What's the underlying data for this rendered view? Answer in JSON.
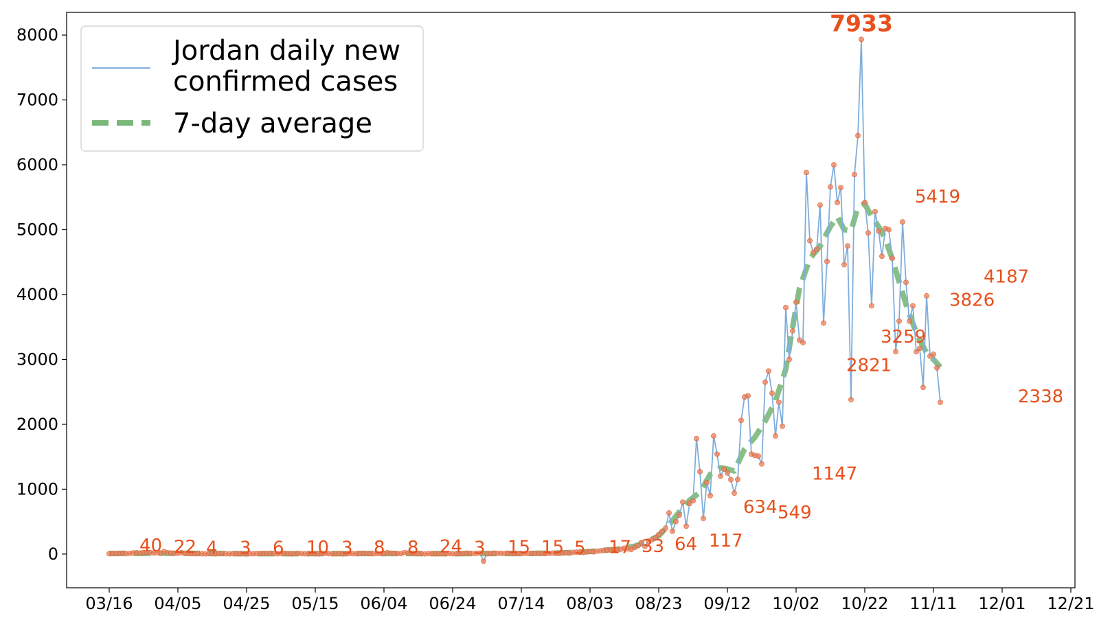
{
  "chart_data": {
    "type": "line",
    "title": "",
    "xlabel": "",
    "ylabel": "",
    "start_date": "2020-03-16",
    "x_ticks": [
      "03/16",
      "04/05",
      "04/25",
      "05/15",
      "06/04",
      "06/24",
      "07/14",
      "08/03",
      "08/23",
      "09/12",
      "10/02",
      "10/22",
      "11/11",
      "12/01",
      "12/21"
    ],
    "y_ticks": [
      "0",
      "1000",
      "2000",
      "3000",
      "4000",
      "5000",
      "6000",
      "7000",
      "8000"
    ],
    "ylim": [
      -520,
      8350
    ],
    "grid": false,
    "legend_position": "top-left",
    "series": [
      {
        "name": "Jordan daily new confirmed cases",
        "color": "#7faedb",
        "anchors": [
          [
            0,
            5
          ],
          [
            1,
            10
          ],
          [
            2,
            8
          ],
          [
            3,
            12
          ],
          [
            4,
            14
          ],
          [
            5,
            5
          ],
          [
            6,
            10
          ],
          [
            7,
            18
          ],
          [
            8,
            20
          ],
          [
            9,
            15
          ],
          [
            10,
            25
          ],
          [
            11,
            30
          ],
          [
            12,
            22
          ],
          [
            13,
            18
          ],
          [
            14,
            20
          ],
          [
            15,
            15
          ],
          [
            16,
            40
          ],
          [
            17,
            20
          ],
          [
            18,
            15
          ],
          [
            19,
            10
          ],
          [
            20,
            12
          ],
          [
            21,
            22
          ],
          [
            22,
            10
          ],
          [
            23,
            8
          ],
          [
            24,
            6
          ],
          [
            25,
            4
          ],
          [
            26,
            5
          ],
          [
            27,
            4
          ],
          [
            28,
            3
          ],
          [
            29,
            5
          ],
          [
            30,
            4
          ],
          [
            31,
            3
          ],
          [
            32,
            6
          ],
          [
            33,
            8
          ],
          [
            34,
            4
          ],
          [
            35,
            3
          ],
          [
            36,
            5
          ],
          [
            37,
            4
          ],
          [
            38,
            3
          ],
          [
            39,
            6
          ],
          [
            40,
            3
          ],
          [
            41,
            5
          ],
          [
            42,
            4
          ],
          [
            43,
            8
          ],
          [
            44,
            6
          ],
          [
            45,
            10
          ],
          [
            46,
            8
          ],
          [
            47,
            12
          ],
          [
            48,
            6
          ],
          [
            49,
            4
          ],
          [
            50,
            8
          ],
          [
            51,
            10
          ],
          [
            52,
            5
          ],
          [
            53,
            3
          ],
          [
            54,
            8
          ],
          [
            55,
            10
          ],
          [
            56,
            6
          ],
          [
            57,
            4
          ],
          [
            58,
            3
          ],
          [
            59,
            6
          ],
          [
            60,
            4
          ],
          [
            61,
            3
          ],
          [
            62,
            8
          ],
          [
            63,
            10
          ],
          [
            64,
            5
          ],
          [
            65,
            3
          ],
          [
            66,
            4
          ],
          [
            67,
            6
          ],
          [
            68,
            3
          ],
          [
            69,
            5
          ],
          [
            70,
            8
          ],
          [
            71,
            6
          ],
          [
            72,
            4
          ],
          [
            73,
            10
          ],
          [
            74,
            12
          ],
          [
            75,
            8
          ],
          [
            76,
            6
          ],
          [
            77,
            4
          ],
          [
            78,
            8
          ],
          [
            79,
            6
          ],
          [
            80,
            5
          ],
          [
            81,
            20
          ],
          [
            82,
            15
          ],
          [
            83,
            10
          ],
          [
            84,
            8
          ],
          [
            85,
            6
          ],
          [
            86,
            24
          ],
          [
            87,
            15
          ],
          [
            88,
            10
          ],
          [
            89,
            8
          ],
          [
            90,
            5
          ],
          [
            91,
            4
          ],
          [
            92,
            3
          ],
          [
            93,
            6
          ],
          [
            94,
            4
          ],
          [
            95,
            3
          ],
          [
            96,
            5
          ],
          [
            97,
            4
          ],
          [
            98,
            3
          ],
          [
            99,
            6
          ],
          [
            100,
            4
          ],
          [
            101,
            3
          ],
          [
            102,
            5
          ],
          [
            103,
            8
          ],
          [
            104,
            15
          ],
          [
            105,
            10
          ],
          [
            106,
            8
          ],
          [
            107,
            12
          ],
          [
            108,
            15
          ],
          [
            109,
            -110
          ],
          [
            110,
            5
          ],
          [
            111,
            8
          ],
          [
            112,
            15
          ],
          [
            113,
            10
          ],
          [
            114,
            12
          ],
          [
            115,
            8
          ],
          [
            116,
            15
          ],
          [
            117,
            10
          ],
          [
            118,
            6
          ],
          [
            119,
            8
          ],
          [
            120,
            5
          ],
          [
            121,
            10
          ],
          [
            122,
            8
          ],
          [
            123,
            6
          ],
          [
            124,
            10
          ],
          [
            125,
            12
          ],
          [
            126,
            8
          ],
          [
            127,
            6
          ],
          [
            128,
            10
          ],
          [
            129,
            15
          ],
          [
            130,
            12
          ],
          [
            131,
            10
          ],
          [
            132,
            17
          ],
          [
            133,
            20
          ],
          [
            134,
            15
          ],
          [
            135,
            25
          ],
          [
            136,
            30
          ],
          [
            137,
            28
          ],
          [
            138,
            25
          ],
          [
            139,
            33
          ],
          [
            140,
            40
          ],
          [
            141,
            35
          ],
          [
            142,
            45
          ],
          [
            143,
            50
          ],
          [
            144,
            55
          ],
          [
            145,
            60
          ],
          [
            146,
            64
          ],
          [
            147,
            70
          ],
          [
            148,
            60
          ],
          [
            149,
            75
          ],
          [
            150,
            90
          ],
          [
            151,
            80
          ],
          [
            152,
            70
          ],
          [
            153,
            100
          ],
          [
            154,
            130
          ],
          [
            155,
            180
          ],
          [
            156,
            117
          ],
          [
            157,
            200
          ],
          [
            158,
            220
          ],
          [
            159,
            250
          ],
          [
            160,
            300
          ],
          [
            161,
            350
          ],
          [
            162,
            400
          ],
          [
            163,
            634
          ],
          [
            164,
            350
          ],
          [
            165,
            500
          ],
          [
            166,
            600
          ],
          [
            167,
            800
          ],
          [
            168,
            430
          ],
          [
            169,
            780
          ],
          [
            170,
            820
          ],
          [
            171,
            1780
          ],
          [
            172,
            1270
          ],
          [
            173,
            549
          ],
          [
            174,
            1100
          ],
          [
            175,
            900
          ],
          [
            176,
            1820
          ],
          [
            177,
            1540
          ],
          [
            178,
            1200
          ],
          [
            179,
            1310
          ],
          [
            180,
            1250
          ],
          [
            181,
            1147
          ],
          [
            182,
            940
          ],
          [
            183,
            1150
          ],
          [
            184,
            2060
          ],
          [
            185,
            2420
          ],
          [
            186,
            2440
          ],
          [
            187,
            1540
          ],
          [
            188,
            1520
          ],
          [
            189,
            1510
          ],
          [
            190,
            1390
          ],
          [
            191,
            2650
          ],
          [
            192,
            2821
          ],
          [
            193,
            2480
          ],
          [
            194,
            1820
          ],
          [
            195,
            2340
          ],
          [
            196,
            1970
          ],
          [
            197,
            3800
          ],
          [
            198,
            3000
          ],
          [
            199,
            3440
          ],
          [
            200,
            3880
          ],
          [
            201,
            3300
          ],
          [
            202,
            3259
          ],
          [
            203,
            5880
          ],
          [
            204,
            4830
          ],
          [
            205,
            4650
          ],
          [
            206,
            4700
          ],
          [
            207,
            5380
          ],
          [
            208,
            3560
          ],
          [
            209,
            4510
          ],
          [
            210,
            5660
          ],
          [
            211,
            6000
          ],
          [
            212,
            5419
          ],
          [
            213,
            5650
          ],
          [
            214,
            4460
          ],
          [
            215,
            4750
          ],
          [
            216,
            2380
          ],
          [
            217,
            5850
          ],
          [
            218,
            6450
          ],
          [
            219,
            7933
          ],
          [
            220,
            5419
          ],
          [
            221,
            4950
          ],
          [
            222,
            3826
          ],
          [
            223,
            5280
          ],
          [
            224,
            4980
          ],
          [
            225,
            4590
          ],
          [
            226,
            5020
          ],
          [
            227,
            5000
          ],
          [
            228,
            4560
          ],
          [
            229,
            3120
          ],
          [
            230,
            3590
          ],
          [
            231,
            5120
          ],
          [
            232,
            4187
          ],
          [
            233,
            3590
          ],
          [
            234,
            3826
          ],
          [
            235,
            3120
          ],
          [
            236,
            3170
          ],
          [
            237,
            2570
          ],
          [
            238,
            3980
          ],
          [
            239,
            3050
          ],
          [
            240,
            3080
          ],
          [
            241,
            2870
          ],
          [
            242,
            2338
          ]
        ]
      },
      {
        "name": "7-day average",
        "color": "#7ab87a",
        "anchors": [
          [
            0,
            8
          ],
          [
            20,
            12
          ],
          [
            40,
            5
          ],
          [
            60,
            6
          ],
          [
            80,
            8
          ],
          [
            100,
            6
          ],
          [
            120,
            8
          ],
          [
            130,
            15
          ],
          [
            140,
            40
          ],
          [
            148,
            75
          ],
          [
            153,
            120
          ],
          [
            157,
            200
          ],
          [
            160,
            280
          ],
          [
            163,
            450
          ],
          [
            166,
            650
          ],
          [
            169,
            830
          ],
          [
            172,
            950
          ],
          [
            175,
            1230
          ],
          [
            178,
            1330
          ],
          [
            180,
            1310
          ],
          [
            182,
            1280
          ],
          [
            185,
            1620
          ],
          [
            188,
            1800
          ],
          [
            191,
            2050
          ],
          [
            194,
            2360
          ],
          [
            197,
            2850
          ],
          [
            199,
            3500
          ],
          [
            201,
            4100
          ],
          [
            204,
            4550
          ],
          [
            207,
            4750
          ],
          [
            210,
            5050
          ],
          [
            212,
            5200
          ],
          [
            214,
            5000
          ],
          [
            216,
            4980
          ],
          [
            218,
            5350
          ],
          [
            220,
            5400
          ],
          [
            222,
            5200
          ],
          [
            224,
            5050
          ],
          [
            226,
            4850
          ],
          [
            228,
            4550
          ],
          [
            230,
            4200
          ],
          [
            232,
            3850
          ],
          [
            234,
            3550
          ],
          [
            236,
            3300
          ],
          [
            238,
            3100
          ],
          [
            240,
            3000
          ],
          [
            242,
            2880
          ]
        ]
      }
    ],
    "data_labels": [
      {
        "x": 16,
        "text": "40",
        "y": 40
      },
      {
        "x": 27,
        "text": "22",
        "y": 22
      },
      {
        "x": 37,
        "text": "4",
        "y": 4
      },
      {
        "x": 48,
        "text": "3",
        "y": 3
      },
      {
        "x": 58,
        "text": "6",
        "y": 6
      },
      {
        "x": 68,
        "text": "10",
        "y": 10
      },
      {
        "x": 79,
        "text": "3",
        "y": 3
      },
      {
        "x": 89,
        "text": "8",
        "y": 8
      },
      {
        "x": 99,
        "text": "8",
        "y": 8
      },
      {
        "x": 109,
        "text": "24",
        "y": 24
      },
      {
        "x": 120,
        "text": "3",
        "y": 3
      },
      {
        "x": 130,
        "text": "15",
        "y": 15
      },
      {
        "x": 141,
        "text": "15",
        "y": 15
      },
      {
        "x": 151,
        "text": "5",
        "y": 5
      },
      {
        "x": 161,
        "text": "17",
        "y": 17
      },
      {
        "x": 172,
        "text": "33",
        "y": 33
      },
      {
        "x": 182,
        "text": "64",
        "y": 64
      },
      {
        "x": 192,
        "text": "117",
        "y": 117
      },
      {
        "x": 202,
        "text": "634",
        "y": 634
      },
      {
        "x": 213,
        "text": "549",
        "y": 549
      },
      {
        "x": 223,
        "text": "1147",
        "y": 1147
      },
      {
        "x": 233,
        "text": "2821",
        "y": 2821
      },
      {
        "x": 243,
        "text": "3259",
        "y": 3259
      },
      {
        "x": 254,
        "text": "5419",
        "y": 5419
      },
      {
        "x": 264,
        "text": "3826",
        "y": 3826
      },
      {
        "x": 274,
        "text": "4187",
        "y": 4187
      },
      {
        "x": 284,
        "text": "2338",
        "y": 2338
      }
    ],
    "peak_label": {
      "text": "7933",
      "x": 219,
      "y": 7933
    }
  },
  "legend": {
    "line1": "Jordan daily new",
    "line2": "confirmed cases",
    "line3": "7-day average"
  }
}
